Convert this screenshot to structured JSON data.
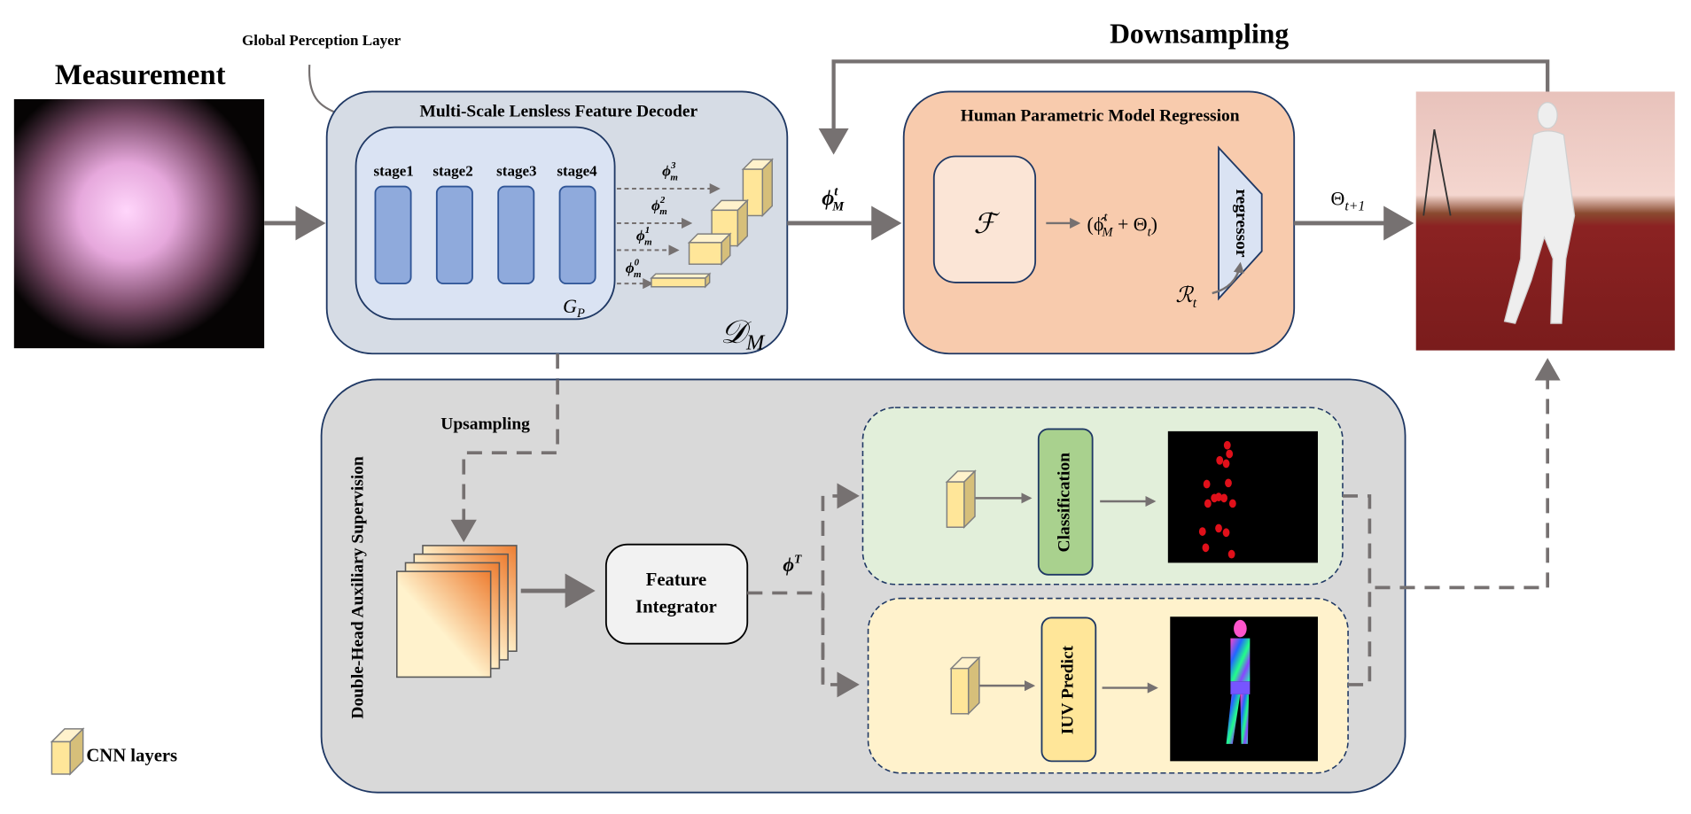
{
  "labels": {
    "measurement": "Measurement",
    "global_perception": "Global Perception Layer",
    "downsampling": "Downsampling",
    "upsampling": "Upsampling",
    "cnn_legend": "CNN layers"
  },
  "decoder": {
    "title": "Multi-Scale Lensless Feature Decoder",
    "stages": [
      "stage1",
      "stage2",
      "stage3",
      "stage4"
    ],
    "gp": "G",
    "gp_sub": "P",
    "dm": "𝒟",
    "dm_sub": "M",
    "features": [
      {
        "sym": "ϕ",
        "sup": "3",
        "sub": "m"
      },
      {
        "sym": "ϕ",
        "sup": "2",
        "sub": "m"
      },
      {
        "sym": "ϕ",
        "sup": "1",
        "sub": "m"
      },
      {
        "sym": "ϕ",
        "sup": "0",
        "sub": "m"
      }
    ]
  },
  "phi_M": {
    "sym": "ϕ",
    "sup": "t",
    "sub": "M"
  },
  "regression": {
    "title": "Human Parametric Model Regression",
    "f_symbol": "ℱ",
    "formula": "(ϕ̂",
    "formula_sup": "t",
    "formula_sub": "M",
    "formula_rest": " + Θ",
    "formula_rest_sub": "t",
    "formula_close": ")",
    "regressor": "regressor",
    "r_symbol": "ℛ",
    "r_sub": "t"
  },
  "theta_out": {
    "sym": "Θ",
    "sub": "t+1"
  },
  "auxiliary": {
    "title": "Double-Head Auxiliary Supervision",
    "integrator_line1": "Feature",
    "integrator_line2": "Integrator",
    "phi_T": {
      "sym": "ϕ",
      "sup": "T"
    },
    "classification": "Classification",
    "iuv": "IUV Predict"
  },
  "colors": {
    "arrow": "#767171",
    "border": "#1f3864",
    "decoder_fill": "#d6dce5",
    "inner_fill": "#dae3f3",
    "stage_fill": "#8faadc",
    "regression_fill": "#f8cbad",
    "aux_fill": "#d9d9d9",
    "green_fill": "#e2efda",
    "yellow_fill": "#fff2cc",
    "cube_fill": "#ffe699",
    "keypoint": "#e0101a"
  }
}
